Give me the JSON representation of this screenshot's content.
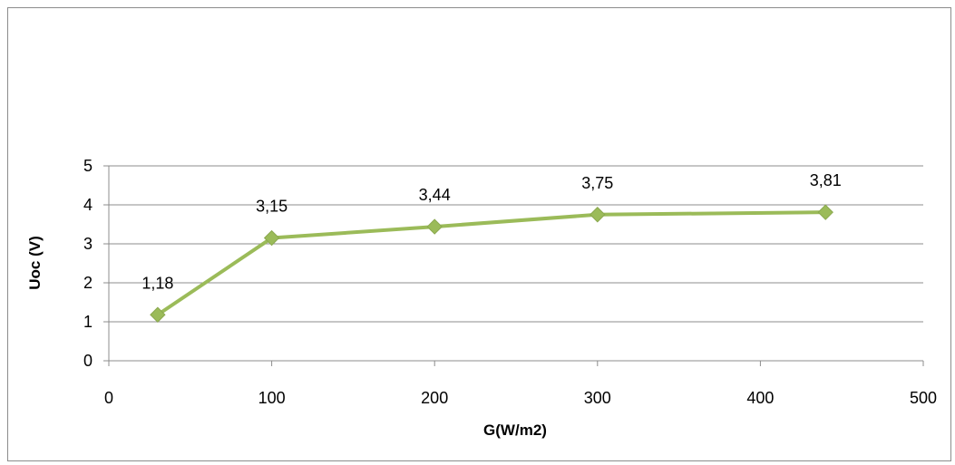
{
  "chart_data": {
    "type": "line",
    "title": "",
    "xlabel": "G(W/m2)",
    "ylabel": "Uoc (V)",
    "xlim": [
      0,
      500
    ],
    "ylim": [
      0,
      5
    ],
    "x_ticks": [
      0,
      100,
      200,
      300,
      400,
      500
    ],
    "y_ticks": [
      0,
      1,
      2,
      3,
      4,
      5
    ],
    "grid": "horizontal",
    "legend": "none",
    "series": [
      {
        "color": "#9bbb59",
        "marker": "diamond",
        "points": [
          {
            "x": 30,
            "y": 1.18,
            "label": "1,18"
          },
          {
            "x": 100,
            "y": 3.15,
            "label": "3,15"
          },
          {
            "x": 200,
            "y": 3.44,
            "label": "3,44"
          },
          {
            "x": 300,
            "y": 3.75,
            "label": "3,75"
          },
          {
            "x": 440,
            "y": 3.81,
            "label": "3,81"
          }
        ]
      }
    ]
  }
}
